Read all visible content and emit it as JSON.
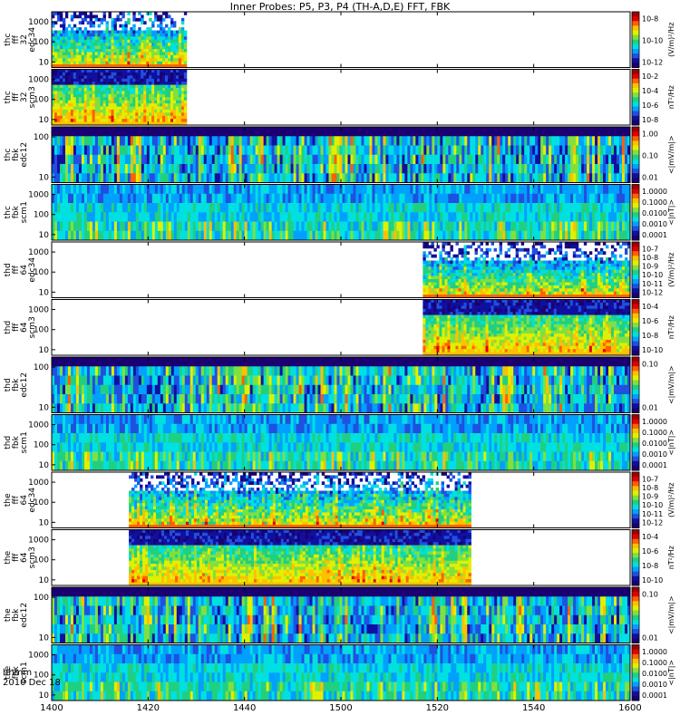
{
  "title": "Inner Probes: P5, P3, P4 (TH-A,D,E) FFT, FBK",
  "time_axis": {
    "time_label": "hhmm",
    "date_label": "2010 Dec 18"
  },
  "colors": {
    "colormap": [
      "#1a0070",
      "#1010a0",
      "#2050e0",
      "#00a0ff",
      "#00e0e0",
      "#20d080",
      "#80e040",
      "#e0f000",
      "#ffc000",
      "#ff6000",
      "#e00000",
      "#a00000"
    ],
    "no_data": "#ffffff",
    "frame": "#000000"
  },
  "chart_data": {
    "type": "heatmap",
    "x": {
      "ticks": [
        "1400",
        "1420",
        "1440",
        "1500",
        "1520",
        "1540",
        "1600"
      ],
      "range": [
        "1400",
        "1600"
      ]
    },
    "panels": [
      {
        "ylabel": [
          "thc",
          "fff",
          "32",
          "edc34"
        ],
        "yticks": [
          "1000",
          "100",
          "10"
        ],
        "colorbar_ticks": [
          "10^-8",
          "10^-10",
          "10^-12"
        ],
        "colorbar_label": "(V/m)²/Hz",
        "data_start": "1400",
        "data_end": "1428",
        "style": "fff"
      },
      {
        "ylabel": [
          "thc",
          "fff",
          "32",
          "scm3"
        ],
        "yticks": [
          "1000",
          "100",
          "10"
        ],
        "colorbar_ticks": [
          "10^-2",
          "10^-4",
          "10^-6",
          "10^-8"
        ],
        "colorbar_label": "nT²/Hz",
        "data_start": "1400",
        "data_end": "1428",
        "style": "fffscm"
      },
      {
        "ylabel": [
          "thc",
          "fbk",
          "edc12"
        ],
        "yticks": [
          "100",
          "10"
        ],
        "colorbar_ticks": [
          "1.00",
          "0.10",
          "0.01"
        ],
        "colorbar_label": "<|mV/m|>",
        "data_start": "1400",
        "data_end": "1600",
        "style": "fbk"
      },
      {
        "ylabel": [
          "thc",
          "fbk",
          "scm1"
        ],
        "yticks": [
          "1000",
          "100",
          "10"
        ],
        "colorbar_ticks": [
          "1.0000",
          "0.1000",
          "0.0100",
          "0.0010",
          "0.0001"
        ],
        "colorbar_label": "<|nT|>",
        "data_start": "1400",
        "data_end": "1600",
        "style": "fbkscm"
      },
      {
        "ylabel": [
          "thd",
          "fff",
          "64",
          "edc34"
        ],
        "yticks": [
          "1000",
          "100",
          "10"
        ],
        "colorbar_ticks": [
          "10^-7",
          "10^-8",
          "10^-9",
          "10^-10",
          "10^-11",
          "10^-12"
        ],
        "colorbar_label": "(V/m)²/Hz",
        "data_start": "1517",
        "data_end": "1600",
        "style": "fff"
      },
      {
        "ylabel": [
          "thd",
          "fff",
          "64",
          "scm3"
        ],
        "yticks": [
          "1000",
          "100",
          "10"
        ],
        "colorbar_ticks": [
          "10^-4",
          "10^-6",
          "10^-8",
          "10^-10"
        ],
        "colorbar_label": "nT²/Hz",
        "data_start": "1517",
        "data_end": "1600",
        "style": "fffscm"
      },
      {
        "ylabel": [
          "thd",
          "fbk",
          "edc12"
        ],
        "yticks": [
          "100",
          "10"
        ],
        "colorbar_ticks": [
          "0.10",
          "0.01"
        ],
        "colorbar_label": "<|mV/m|>",
        "data_start": "1400",
        "data_end": "1600",
        "style": "fbk"
      },
      {
        "ylabel": [
          "thd",
          "fbk",
          "scm1"
        ],
        "yticks": [
          "1000",
          "100",
          "10"
        ],
        "colorbar_ticks": [
          "1.0000",
          "0.1000",
          "0.0100",
          "0.0010",
          "0.0001"
        ],
        "colorbar_label": "<|nT|>",
        "data_start": "1400",
        "data_end": "1600",
        "style": "fbkscm"
      },
      {
        "ylabel": [
          "the",
          "fff",
          "64",
          "edc34"
        ],
        "yticks": [
          "1000",
          "100",
          "10"
        ],
        "colorbar_ticks": [
          "10^-7",
          "10^-8",
          "10^-9",
          "10^-10",
          "10^-11",
          "10^-12"
        ],
        "colorbar_label": "(V/m)²/Hz",
        "data_start": "1416",
        "data_end": "1527",
        "style": "fff"
      },
      {
        "ylabel": [
          "the",
          "fff",
          "64",
          "scm3"
        ],
        "yticks": [
          "1000",
          "100",
          "10"
        ],
        "colorbar_ticks": [
          "10^-4",
          "10^-6",
          "10^-8",
          "10^-10"
        ],
        "colorbar_label": "nT²/Hz",
        "data_start": "1416",
        "data_end": "1527",
        "style": "fffscm"
      },
      {
        "ylabel": [
          "the",
          "fbk",
          "edc12"
        ],
        "yticks": [
          "100",
          "10"
        ],
        "colorbar_ticks": [
          "0.10",
          "0.01"
        ],
        "colorbar_label": "<|mV/m|>",
        "data_start": "1400",
        "data_end": "1600",
        "style": "fbk"
      },
      {
        "ylabel": [
          "the",
          "fbk",
          "scm1"
        ],
        "yticks": [
          "1000",
          "100",
          "10"
        ],
        "colorbar_ticks": [
          "1.0000",
          "0.1000",
          "0.0100",
          "0.0010",
          "0.0001"
        ],
        "colorbar_label": "<|nT|>",
        "data_start": "1400",
        "data_end": "1600",
        "style": "fbkscm"
      }
    ]
  }
}
